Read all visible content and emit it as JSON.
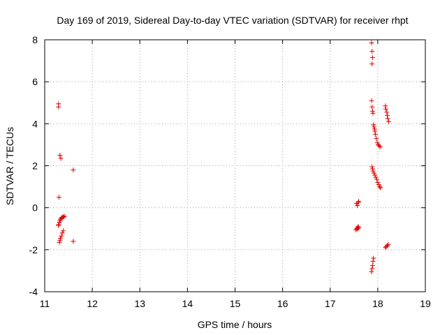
{
  "chart_data": {
    "type": "scatter",
    "title": "Day 169 of 2019, Sidereal Day-to-day VTEC variation (SDTVAR) for receiver rhpt",
    "xlabel": "GPS time / hours",
    "ylabel": "SDTVAR / TECUs",
    "xlim": [
      11,
      19
    ],
    "ylim": [
      -4,
      8
    ],
    "x_ticks": [
      "11",
      "12",
      "13",
      "14",
      "15",
      "16",
      "17",
      "18",
      "19"
    ],
    "y_ticks": [
      "-4",
      "-2",
      "0",
      "2",
      "4",
      "6",
      "8"
    ],
    "grid": true,
    "marker": "plus",
    "color": "#e00000",
    "series": [
      {
        "name": "SDTVAR",
        "x": [
          11.29,
          11.29,
          11.3,
          11.32,
          11.34,
          11.6,
          11.29,
          11.29,
          11.31,
          11.32,
          11.33,
          11.35,
          11.36,
          11.38,
          11.4,
          11.41,
          11.31,
          11.32,
          11.33,
          11.35,
          11.37,
          11.39,
          11.6,
          17.54,
          17.56,
          17.57,
          17.58,
          17.59,
          17.6,
          17.55,
          17.57,
          17.59,
          17.6,
          17.87,
          17.88,
          17.89,
          17.88,
          17.87,
          17.88,
          17.89,
          17.9,
          17.91,
          17.92,
          17.93,
          17.94,
          17.95,
          17.97,
          17.99,
          18.01,
          18.03,
          18.05,
          17.88,
          17.89,
          17.9,
          17.92,
          17.94,
          17.96,
          17.98,
          18.0,
          18.02,
          18.04,
          18.06,
          17.87,
          17.88,
          17.89,
          17.9,
          17.91,
          18.16,
          18.17,
          18.19,
          18.2,
          18.21,
          18.23,
          18.16,
          18.18,
          18.2,
          18.22
        ],
        "y": [
          4.95,
          4.8,
          0.5,
          2.5,
          2.35,
          1.8,
          -0.85,
          -0.8,
          -0.7,
          -0.62,
          -0.55,
          -0.5,
          -0.47,
          -0.45,
          -0.43,
          -0.4,
          -1.65,
          -1.55,
          -1.45,
          -1.35,
          -1.2,
          -1.1,
          -1.6,
          -1.05,
          -1.0,
          -0.95,
          -1.0,
          -0.9,
          -0.95,
          0.2,
          0.1,
          0.25,
          0.3,
          7.85,
          7.45,
          7.15,
          6.85,
          5.1,
          4.8,
          4.6,
          4.5,
          3.95,
          3.85,
          3.75,
          3.65,
          3.5,
          3.3,
          3.1,
          3.0,
          2.95,
          2.9,
          1.95,
          1.85,
          1.75,
          1.65,
          1.55,
          1.45,
          1.35,
          1.2,
          1.1,
          1.0,
          0.95,
          -3.05,
          -2.9,
          -2.75,
          -2.55,
          -2.4,
          4.85,
          4.7,
          4.55,
          4.4,
          4.25,
          4.1,
          -1.9,
          -1.85,
          -1.8,
          -1.75
        ]
      }
    ]
  }
}
